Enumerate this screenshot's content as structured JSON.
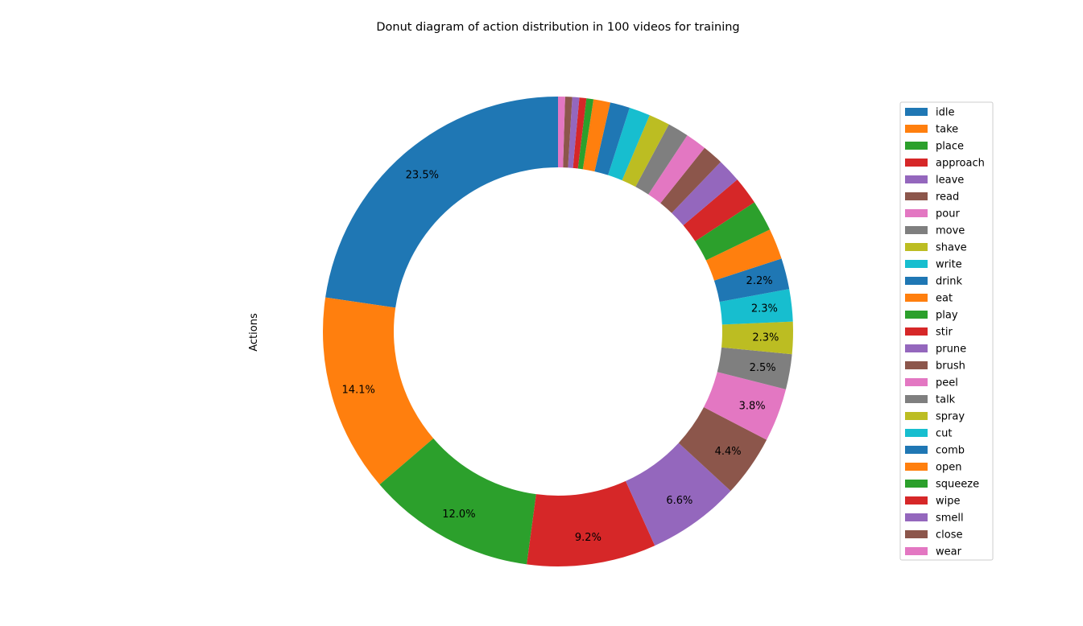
{
  "chart_data": {
    "type": "pie",
    "donut": true,
    "title": "Donut diagram of action distribution in 100 videos for training",
    "ylabel": "Actions",
    "legend_position": "right",
    "labels": [
      "idle",
      "take",
      "place",
      "approach",
      "leave",
      "read",
      "pour",
      "move",
      "shave",
      "write",
      "drink",
      "eat",
      "play",
      "stir",
      "prune",
      "brush",
      "peel",
      "talk",
      "spray",
      "cut",
      "comb",
      "open",
      "squeeze",
      "wipe",
      "smell",
      "close",
      "wear"
    ],
    "values": [
      23.5,
      14.1,
      12.0,
      9.2,
      6.6,
      4.4,
      3.8,
      2.5,
      2.3,
      2.3,
      2.2,
      2.2,
      2.2,
      2.0,
      1.7,
      1.5,
      1.5,
      1.5,
      1.5,
      1.5,
      1.4,
      1.2,
      0.5,
      0.5,
      0.5,
      0.5,
      0.5
    ],
    "percent_labels": [
      "23.5%",
      "14.1%",
      "12.0%",
      "9.2%",
      "6.6%",
      "4.4%",
      "3.8%",
      "2.5%",
      "2.3%",
      "2.3%",
      "2.2%",
      "",
      "",
      "",
      "",
      "",
      "",
      "",
      "",
      "",
      "",
      "",
      "",
      "",
      "",
      "",
      ""
    ],
    "colors": [
      "#1f77b4",
      "#ff7f0e",
      "#2ca02c",
      "#d62728",
      "#9467bd",
      "#8c564b",
      "#e377c2",
      "#7f7f7f",
      "#bcbd22",
      "#17becf",
      "#1f77b4",
      "#ff7f0e",
      "#2ca02c",
      "#d62728",
      "#9467bd",
      "#8c564b",
      "#e377c2",
      "#7f7f7f",
      "#bcbd22",
      "#17becf",
      "#1f77b4",
      "#ff7f0e",
      "#2ca02c",
      "#d62728",
      "#9467bd",
      "#8c564b",
      "#e377c2"
    ],
    "start_angle_deg": 90,
    "direction": "counterclockwise"
  }
}
